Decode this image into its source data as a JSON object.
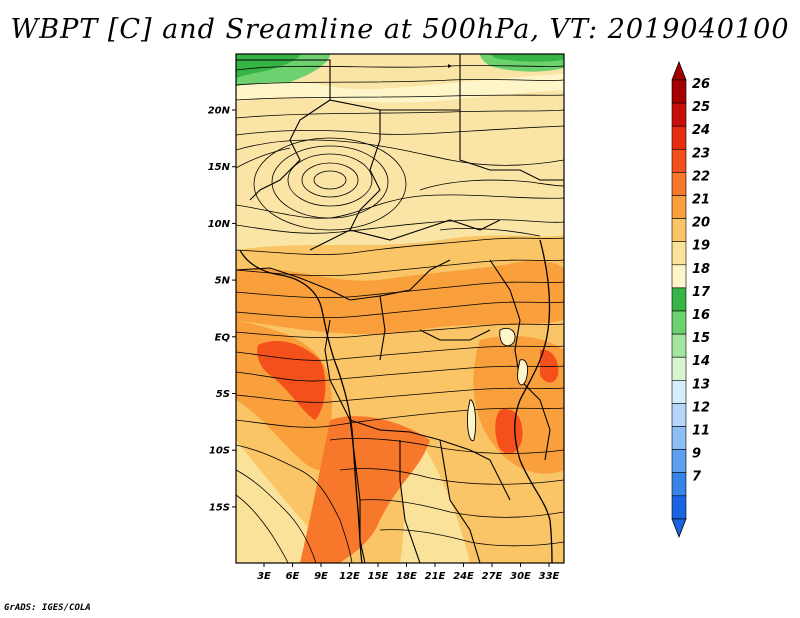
{
  "title": "WBPT [C] and Sreamline at 500hPa, VT: 2019040100",
  "footer": "GrADS: IGES/COLA",
  "map": {
    "lon_ticks": [
      "3E",
      "6E",
      "9E",
      "12E",
      "15E",
      "18E",
      "21E",
      "24E",
      "27E",
      "30E",
      "33E"
    ],
    "lat_ticks": [
      "20N",
      "15N",
      "10N",
      "5N",
      "EQ",
      "5S",
      "10S",
      "15S"
    ],
    "field": "wet-bulb potential temperature",
    "overlay": "streamlines"
  },
  "colorbar": {
    "labels": [
      "26",
      "25",
      "24",
      "23",
      "22",
      "21",
      "20",
      "19",
      "18",
      "17",
      "16",
      "15",
      "14",
      "13",
      "12",
      "11",
      "9",
      "7"
    ],
    "colors": [
      "#a50000",
      "#c8100a",
      "#e62d12",
      "#f4501c",
      "#f7782a",
      "#f9a03c",
      "#fac566",
      "#fbe29a",
      "#fef6c8",
      "#37b446",
      "#6cd16e",
      "#a4e6a0",
      "#d8f5d2",
      "#d6eefc",
      "#b4d6f8",
      "#8cbdf4",
      "#5b9ff0",
      "#3883e8",
      "#1a64e2"
    ],
    "min_arrow_color": "#1a64e2",
    "max_arrow_color": "#a50000"
  }
}
